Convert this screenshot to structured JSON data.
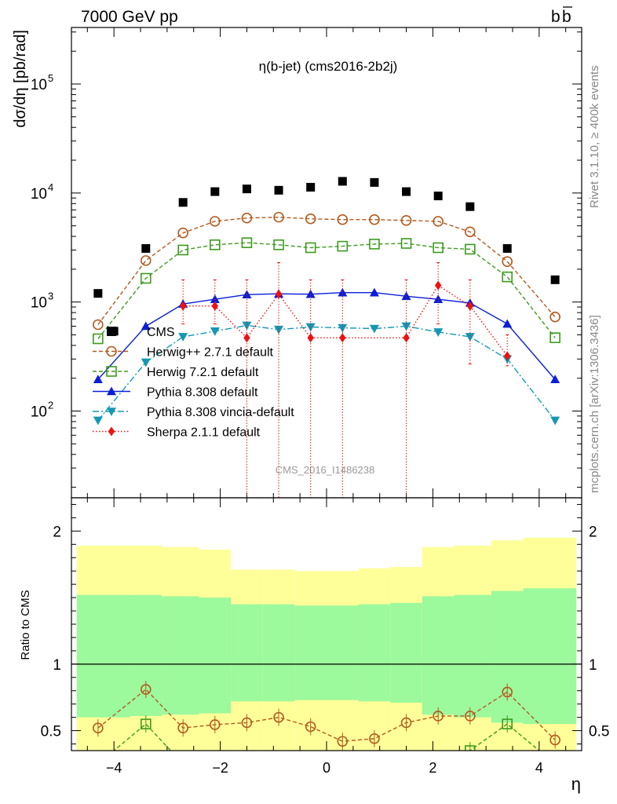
{
  "header": {
    "left": "7000 GeV pp",
    "right_base": "b",
    "right_bar": "b"
  },
  "side_labels": {
    "top": "Rivet 3.1.10, ≥ 400k events",
    "bottom": "mcplots.cern.ch [arXiv:1306.3436]"
  },
  "chart_data": [
    {
      "type": "line",
      "panel": "main",
      "title": "η(b-jet) (cms2016-2b2j)",
      "ylabel": "dσ/dη [pb/rad]",
      "xlabel": "",
      "yscale": "log",
      "ylim": [
        16,
        330000
      ],
      "xlim": [
        -4.8,
        4.8
      ],
      "yticks": [
        {
          "value": 100,
          "base": "10",
          "exp": "2"
        },
        {
          "value": 1000,
          "base": "10",
          "exp": "3"
        },
        {
          "value": 10000,
          "base": "10",
          "exp": "4"
        },
        {
          "value": 100000,
          "base": "10",
          "exp": "5"
        }
      ],
      "watermark": "CMS_2016_I1486238",
      "legend_position": "center-left",
      "x": [
        -4.3,
        -4.0,
        -3.4,
        -2.7,
        -2.1,
        -1.5,
        -0.9,
        -0.3,
        0.3,
        0.9,
        1.5,
        2.1,
        2.7,
        3.4,
        4.3
      ],
      "series": [
        {
          "name": "CMS",
          "color": "#000000",
          "marker": "square",
          "line": "none",
          "x": [
            -4.3,
            -4.0,
            -3.4,
            -2.7,
            -2.1,
            -1.5,
            -0.9,
            -0.3,
            0.3,
            0.9,
            1.5,
            2.1,
            2.7,
            3.4,
            4.3
          ],
          "values": [
            1200,
            540,
            3100,
            8200,
            10300,
            10900,
            10600,
            11300,
            12800,
            12500,
            10300,
            9400,
            7500,
            3100,
            1600
          ]
        },
        {
          "name": "Herwig++ 2.7.1 default",
          "color": "#b35a1f",
          "marker": "circle-open",
          "line": "dashed",
          "x": [
            -4.3,
            -3.4,
            -2.7,
            -2.1,
            -1.5,
            -0.9,
            -0.3,
            0.3,
            0.9,
            1.5,
            2.1,
            2.7,
            3.4,
            4.3
          ],
          "values": [
            620,
            2400,
            4300,
            5500,
            5900,
            6000,
            5800,
            5700,
            5700,
            5600,
            5500,
            4400,
            2350,
            730
          ]
        },
        {
          "name": "Herwig 7.2.1 default",
          "color": "#3d9a1e",
          "marker": "square-open",
          "line": "dashed",
          "x": [
            -4.3,
            -3.4,
            -2.7,
            -2.1,
            -1.5,
            -0.9,
            -0.3,
            0.3,
            0.9,
            1.5,
            2.1,
            2.7,
            3.4,
            4.3
          ],
          "values": [
            460,
            1650,
            3000,
            3350,
            3500,
            3350,
            3150,
            3250,
            3400,
            3450,
            3150,
            3050,
            1700,
            470
          ]
        },
        {
          "name": "Pythia 8.308 default",
          "color": "#0a1ed7",
          "marker": "triangle-up",
          "line": "solid",
          "x": [
            -4.3,
            -3.4,
            -2.7,
            -2.1,
            -1.5,
            -0.9,
            -0.3,
            0.3,
            0.9,
            1.5,
            2.1,
            2.7,
            3.4,
            4.3
          ],
          "values": [
            195,
            600,
            960,
            1060,
            1170,
            1190,
            1180,
            1220,
            1220,
            1130,
            1060,
            980,
            630,
            195
          ]
        },
        {
          "name": "Pythia 8.308 vincia-default",
          "color": "#1597b4",
          "marker": "triangle-down",
          "line": "dashdot",
          "x": [
            -4.3,
            -3.4,
            -2.7,
            -2.1,
            -1.5,
            -0.9,
            -0.3,
            0.3,
            0.9,
            1.5,
            2.1,
            2.7,
            3.4,
            4.3
          ],
          "values": [
            82,
            280,
            480,
            540,
            610,
            560,
            590,
            580,
            570,
            600,
            530,
            480,
            300,
            82
          ]
        },
        {
          "name": "Sherpa 2.1.1 default",
          "color": "#ee1111",
          "marker": "diamond",
          "line": "dotted",
          "x": [
            -2.7,
            -2.1,
            -1.5,
            -0.9,
            -0.3,
            0.3,
            1.5,
            2.1,
            2.7,
            3.4
          ],
          "values": [
            920,
            920,
            470,
            1180,
            470,
            470,
            470,
            1420,
            920,
            320
          ],
          "err_hi": [
            1600,
            1600,
            1600,
            2300,
            1600,
            1600,
            1600,
            2300,
            1600,
            500
          ],
          "err_lo": [
            630,
            630,
            14,
            14,
            14,
            14,
            14,
            630,
            270,
            260
          ]
        }
      ]
    },
    {
      "type": "line",
      "panel": "ratio",
      "ylabel": "Ratio to CMS",
      "xlabel": "η",
      "yscale": "linear",
      "ylim": [
        0.35,
        2.25
      ],
      "xlim": [
        -4.8,
        4.8
      ],
      "yticks": [
        0.5,
        1,
        2
      ],
      "ytick_labels": [
        "0.5",
        "1",
        "2"
      ],
      "xticks": [
        -4,
        -2,
        0,
        2,
        4
      ],
      "xtick_labels": [
        "−4",
        "−2",
        "0",
        "2",
        "4"
      ],
      "bands": {
        "edges": [
          -4.7,
          -3.7,
          -3.1,
          -2.4,
          -1.8,
          -1.2,
          -0.6,
          0.0,
          0.6,
          1.2,
          1.8,
          2.4,
          3.1,
          3.7,
          4.7
        ],
        "inner_lo": [
          0.6,
          0.61,
          0.62,
          0.63,
          0.72,
          0.72,
          0.73,
          0.73,
          0.72,
          0.71,
          0.62,
          0.6,
          0.56,
          0.55
        ],
        "inner_hi": [
          1.52,
          1.52,
          1.51,
          1.5,
          1.45,
          1.45,
          1.44,
          1.44,
          1.45,
          1.46,
          1.51,
          1.52,
          1.55,
          1.57
        ],
        "outer_lo": [
          0.35,
          0.35,
          0.35,
          0.35,
          0.35,
          0.35,
          0.35,
          0.35,
          0.35,
          0.35,
          0.35,
          0.35,
          0.35,
          0.35
        ],
        "outer_hi": [
          1.89,
          1.89,
          1.88,
          1.86,
          1.71,
          1.71,
          1.7,
          1.7,
          1.72,
          1.73,
          1.88,
          1.89,
          1.93,
          1.95
        ],
        "inner_color": "#9cf99c",
        "outer_color": "#ffff99"
      },
      "series": [
        {
          "name": "Herwig++ 2.7.1 default",
          "color": "#b35a1f",
          "marker": "circle-open",
          "line": "dashed",
          "x": [
            -4.3,
            -3.4,
            -2.7,
            -2.1,
            -1.5,
            -0.9,
            -0.3,
            0.3,
            0.9,
            1.5,
            2.1,
            2.7,
            3.4,
            4.3
          ],
          "values": [
            0.52,
            0.81,
            0.52,
            0.545,
            0.56,
            0.6,
            0.53,
            0.42,
            0.44,
            0.56,
            0.61,
            0.61,
            0.79,
            0.43
          ]
        },
        {
          "name": "Herwig 7.2.1 default",
          "color": "#3d9a1e",
          "marker": "square-open",
          "line": "dashed",
          "x": [
            -4.3,
            -3.4,
            -2.7,
            2.7,
            3.4,
            4.3
          ],
          "values": [
            0.25,
            0.55,
            0.25,
            0.35,
            0.55,
            0.25
          ]
        }
      ]
    }
  ]
}
